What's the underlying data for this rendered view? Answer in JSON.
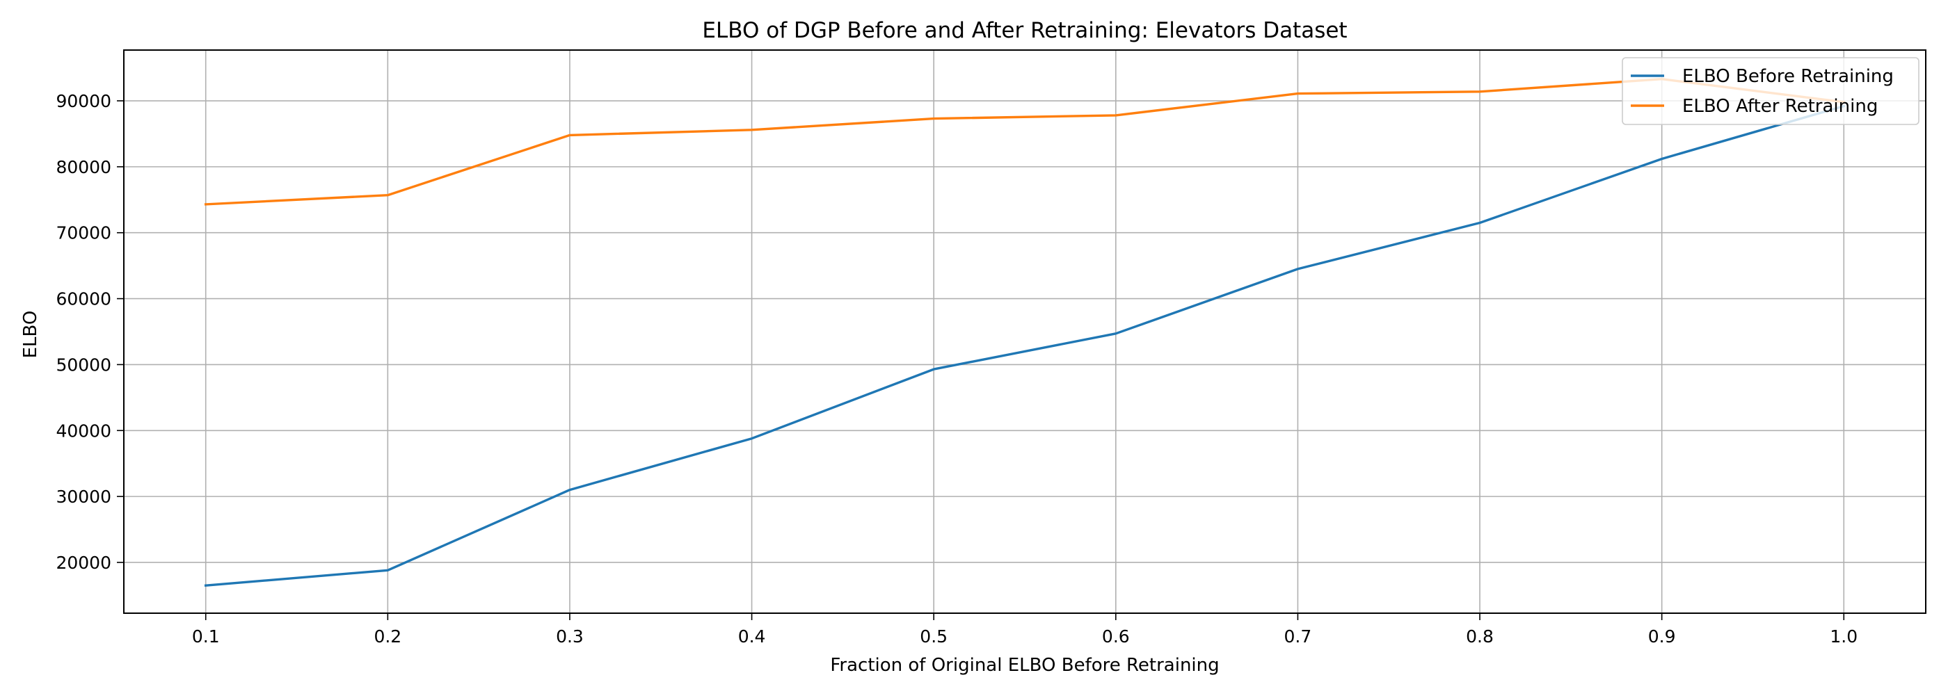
{
  "chart_data": {
    "type": "line",
    "title": "ELBO of DGP Before and After Retraining: Elevators Dataset",
    "xlabel": "Fraction of Original ELBO Before Retraining",
    "ylabel": "ELBO",
    "x": [
      0.1,
      0.2,
      0.3,
      0.4,
      0.5,
      0.6,
      0.7,
      0.8,
      0.9,
      1.0
    ],
    "xlim": [
      0.055,
      1.045
    ],
    "ylim": [
      12300,
      97700
    ],
    "xticks": [
      "0.1",
      "0.2",
      "0.3",
      "0.4",
      "0.5",
      "0.6",
      "0.7",
      "0.8",
      "0.9",
      "1.0"
    ],
    "yticks": [
      "20000",
      "30000",
      "40000",
      "50000",
      "60000",
      "70000",
      "80000",
      "90000"
    ],
    "grid": true,
    "legend_position": "top-right",
    "series": [
      {
        "name": "ELBO Before Retraining",
        "color": "#1f77b4",
        "values": [
          16500,
          18800,
          31000,
          38800,
          49300,
          54700,
          64500,
          71500,
          81200,
          89200
        ]
      },
      {
        "name": "ELBO After Retraining",
        "color": "#ff7f0e",
        "values": [
          74300,
          75700,
          84800,
          85600,
          87300,
          87800,
          91100,
          91400,
          93300,
          89800
        ]
      }
    ]
  }
}
